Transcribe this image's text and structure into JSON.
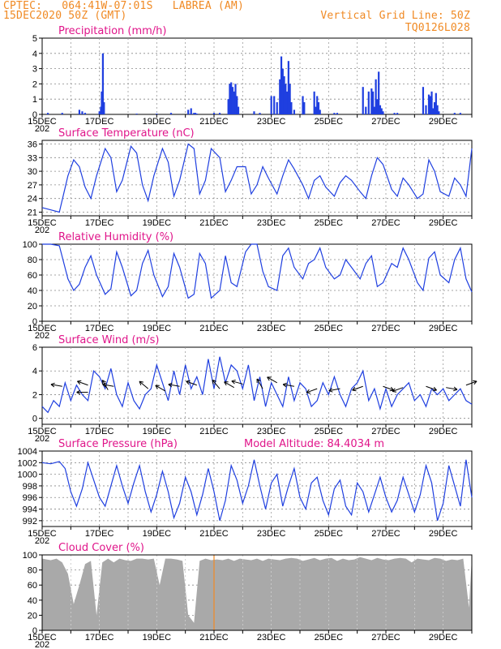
{
  "header": {
    "station_line": "CPTEC:   064:41W-07:01S   LABREA (AM)",
    "date_line": "15DEC2020 50Z (GMT)",
    "grid_note": "Vertical Grid Line: 50Z",
    "code": "TQ0126L028"
  },
  "x_axis": {
    "day_start": 15,
    "day_end": 30,
    "tick_labels": [
      "15DEC",
      "17DEC",
      "19DEC",
      "21DEC",
      "23DEC",
      "25DEC",
      "27DEC",
      "29DEC"
    ],
    "sub_label": "202"
  },
  "colors": {
    "line": "#1f3fe0",
    "bar": "#1f3fe0",
    "cloud": "#a9a9a9",
    "title": "#e0158a",
    "header": "#f08a24",
    "vline_orange": "#f08a24"
  },
  "chart_data": [
    {
      "id": "precip",
      "type": "bar",
      "title": "Precipitation (mm/h)",
      "ylim": [
        0,
        5
      ],
      "yticks": [
        0,
        1,
        2,
        3,
        4,
        5
      ],
      "x": [
        15.2,
        15.7,
        16.3,
        16.4,
        16.5,
        17.0,
        17.05,
        17.08,
        17.12,
        17.16,
        18.3,
        19.0,
        19.5,
        20.1,
        20.2,
        20.3,
        20.35,
        20.4,
        21.0,
        21.2,
        21.5,
        21.55,
        21.6,
        21.65,
        21.7,
        21.75,
        21.8,
        21.85,
        22.4,
        22.6,
        23.0,
        23.1,
        23.2,
        23.3,
        23.35,
        23.4,
        23.45,
        23.5,
        23.55,
        23.6,
        23.65,
        23.7,
        23.8,
        24.1,
        24.15,
        24.5,
        24.55,
        24.6,
        24.65,
        24.7,
        25.2,
        25.3,
        26.2,
        26.3,
        26.4,
        26.5,
        26.55,
        26.6,
        26.65,
        26.7,
        26.75,
        26.8,
        26.85,
        26.9,
        27.3,
        27.4,
        28.3,
        28.4,
        28.5,
        28.55,
        28.6,
        28.65,
        28.7,
        28.75,
        28.8,
        28.85,
        29.4,
        29.6
      ],
      "values": [
        0.1,
        0.1,
        0.3,
        0.2,
        0.1,
        0.2,
        0.5,
        1.5,
        4.0,
        0.8,
        0.05,
        0.05,
        0.1,
        0.3,
        0.4,
        0.1,
        0.1,
        0.05,
        0.1,
        0.1,
        1.0,
        2.0,
        2.1,
        1.8,
        1.5,
        2.0,
        1.2,
        0.5,
        0.2,
        0.1,
        1.2,
        1.2,
        0.8,
        2.3,
        3.8,
        3.0,
        2.5,
        2.0,
        1.5,
        3.5,
        2.0,
        0.8,
        0.3,
        1.2,
        0.8,
        1.5,
        0.5,
        1.2,
        0.8,
        0.3,
        0.1,
        0.1,
        1.8,
        0.5,
        1.5,
        1.7,
        1.5,
        0.5,
        2.3,
        1.0,
        2.8,
        0.6,
        0.4,
        0.2,
        0.1,
        0.1,
        1.8,
        0.6,
        1.3,
        1.2,
        1.5,
        0.4,
        0.8,
        1.4,
        0.6,
        0.2,
        0.1,
        0.1
      ]
    },
    {
      "id": "temp",
      "type": "line",
      "title": "Surface Temperature (nC)",
      "ylim": [
        20.2,
        36.8
      ],
      "yticks": [
        21,
        24,
        27,
        30,
        33,
        36
      ],
      "x": [
        15.0,
        15.3,
        15.6,
        15.9,
        16.1,
        16.3,
        16.5,
        16.7,
        16.9,
        17.2,
        17.4,
        17.6,
        17.8,
        18.1,
        18.3,
        18.5,
        18.7,
        18.9,
        19.2,
        19.4,
        19.6,
        19.8,
        20.1,
        20.3,
        20.5,
        20.7,
        20.9,
        21.2,
        21.4,
        21.6,
        21.8,
        22.1,
        22.3,
        22.5,
        22.7,
        22.9,
        23.2,
        23.4,
        23.6,
        23.8,
        24.1,
        24.3,
        24.5,
        24.7,
        24.9,
        25.2,
        25.4,
        25.6,
        25.8,
        26.1,
        26.3,
        26.5,
        26.7,
        26.9,
        27.2,
        27.4,
        27.6,
        27.8,
        28.1,
        28.3,
        28.5,
        28.7,
        28.9,
        29.2,
        29.4,
        29.6,
        29.8,
        30.0
      ],
      "values": [
        22.0,
        21.5,
        21.0,
        29.0,
        32.5,
        31.0,
        26.5,
        24.0,
        29.0,
        35.0,
        33.0,
        25.5,
        28.0,
        35.5,
        34.0,
        27.0,
        23.5,
        29.0,
        35.0,
        32.0,
        24.5,
        28.0,
        36.0,
        35.0,
        25.0,
        28.0,
        35.0,
        33.0,
        25.5,
        28.0,
        31.0,
        31.0,
        25.0,
        27.0,
        31.0,
        28.5,
        25.0,
        29.0,
        32.5,
        30.5,
        27.0,
        24.0,
        28.0,
        29.0,
        26.5,
        24.5,
        27.5,
        29.0,
        28.0,
        25.5,
        24.0,
        29.0,
        33.0,
        31.5,
        26.0,
        24.5,
        28.5,
        27.0,
        24.0,
        25.0,
        32.5,
        30.0,
        25.5,
        24.5,
        28.5,
        27.0,
        24.5,
        35.0
      ]
    },
    {
      "id": "rh",
      "type": "line",
      "title": "Relative Humidity (%)",
      "ylim": [
        0,
        100
      ],
      "yticks": [
        0,
        20,
        40,
        60,
        80,
        100
      ],
      "x": [
        15.0,
        15.3,
        15.6,
        15.9,
        16.1,
        16.3,
        16.5,
        16.7,
        16.9,
        17.2,
        17.4,
        17.6,
        17.8,
        18.1,
        18.3,
        18.5,
        18.7,
        18.9,
        19.2,
        19.4,
        19.6,
        19.8,
        20.1,
        20.3,
        20.5,
        20.7,
        20.9,
        21.2,
        21.4,
        21.6,
        21.8,
        22.1,
        22.3,
        22.5,
        22.7,
        22.9,
        23.2,
        23.4,
        23.6,
        23.8,
        24.1,
        24.3,
        24.5,
        24.7,
        24.9,
        25.2,
        25.4,
        25.6,
        25.8,
        26.1,
        26.3,
        26.5,
        26.7,
        26.9,
        27.2,
        27.4,
        27.6,
        27.8,
        28.1,
        28.3,
        28.5,
        28.7,
        28.9,
        29.2,
        29.4,
        29.6,
        29.8,
        30.0
      ],
      "values": [
        100,
        100,
        98,
        55,
        40,
        48,
        70,
        85,
        60,
        35,
        42,
        90,
        70,
        33,
        40,
        75,
        92,
        60,
        32,
        45,
        88,
        70,
        30,
        35,
        88,
        75,
        30,
        40,
        85,
        50,
        45,
        90,
        100,
        100,
        65,
        45,
        40,
        85,
        95,
        70,
        55,
        75,
        80,
        95,
        70,
        55,
        60,
        80,
        70,
        55,
        75,
        85,
        45,
        50,
        75,
        70,
        95,
        80,
        50,
        40,
        82,
        90,
        60,
        50,
        80,
        95,
        55,
        38
      ]
    },
    {
      "id": "wind",
      "type": "line",
      "title": "Surface Wind (m/s)",
      "ylim": [
        -0.5,
        6
      ],
      "yticks": [
        0,
        2,
        4,
        6
      ],
      "x": [
        15.0,
        15.2,
        15.4,
        15.6,
        15.8,
        16.0,
        16.2,
        16.4,
        16.6,
        16.8,
        17.0,
        17.2,
        17.4,
        17.6,
        17.8,
        18.0,
        18.2,
        18.4,
        18.6,
        18.8,
        19.0,
        19.2,
        19.4,
        19.6,
        19.8,
        20.0,
        20.2,
        20.4,
        20.6,
        20.8,
        21.0,
        21.2,
        21.4,
        21.6,
        21.8,
        22.0,
        22.2,
        22.4,
        22.6,
        22.8,
        23.0,
        23.2,
        23.4,
        23.6,
        23.8,
        24.0,
        24.2,
        24.4,
        24.6,
        24.8,
        25.0,
        25.2,
        25.4,
        25.6,
        25.8,
        26.0,
        26.2,
        26.4,
        26.6,
        26.8,
        27.0,
        27.2,
        27.4,
        27.6,
        27.8,
        28.0,
        28.2,
        28.4,
        28.6,
        28.8,
        29.0,
        29.2,
        29.4,
        29.6,
        29.8,
        30.0
      ],
      "values": [
        1.0,
        0.5,
        1.5,
        1.0,
        3.0,
        1.5,
        2.8,
        2.0,
        1.5,
        4.0,
        3.5,
        2.5,
        4.2,
        2.0,
        1.0,
        3.0,
        1.5,
        0.8,
        2.0,
        2.5,
        4.5,
        3.0,
        1.5,
        4.0,
        2.0,
        4.5,
        2.5,
        3.5,
        2.0,
        5.0,
        2.5,
        5.2,
        3.0,
        4.5,
        4.0,
        2.5,
        4.5,
        1.5,
        3.5,
        1.0,
        3.0,
        2.0,
        1.0,
        3.5,
        1.5,
        3.0,
        2.5,
        1.0,
        1.5,
        3.0,
        2.0,
        3.5,
        2.0,
        1.0,
        2.5,
        3.0,
        4.0,
        1.5,
        2.5,
        0.8,
        2.5,
        1.0,
        2.0,
        2.5,
        3.0,
        1.5,
        2.0,
        1.0,
        2.5,
        2.0,
        2.5,
        1.5,
        2.0,
        2.5,
        1.5,
        1.2
      ],
      "arrows": [
        {
          "x": 15.7,
          "y": 2.7,
          "dir": -170
        },
        {
          "x": 16.6,
          "y": 2.8,
          "dir": -160
        },
        {
          "x": 16.6,
          "y": 2.2,
          "dir": 180
        },
        {
          "x": 17.5,
          "y": 2.7,
          "dir": -170
        },
        {
          "x": 17.3,
          "y": 2.4,
          "dir": -120
        },
        {
          "x": 18.7,
          "y": 2.5,
          "dir": -140
        },
        {
          "x": 19.3,
          "y": 2.3,
          "dir": -150
        },
        {
          "x": 19.8,
          "y": 2.7,
          "dir": -170
        },
        {
          "x": 20.4,
          "y": 2.8,
          "dir": -160
        },
        {
          "x": 21.2,
          "y": 2.5,
          "dir": -130
        },
        {
          "x": 21.7,
          "y": 2.6,
          "dir": -150
        },
        {
          "x": 22.0,
          "y": 2.9,
          "dir": -165
        },
        {
          "x": 22.7,
          "y": 2.5,
          "dir": -120
        },
        {
          "x": 23.2,
          "y": 3.0,
          "dir": -150
        },
        {
          "x": 23.8,
          "y": 2.7,
          "dir": -170
        },
        {
          "x": 24.6,
          "y": 2.5,
          "dir": 160
        },
        {
          "x": 25.4,
          "y": 2.5,
          "dir": 170
        },
        {
          "x": 26.2,
          "y": 2.7,
          "dir": 160
        },
        {
          "x": 26.9,
          "y": 2.7,
          "dir": 20
        },
        {
          "x": 27.6,
          "y": 2.6,
          "dir": 160
        },
        {
          "x": 28.4,
          "y": 2.7,
          "dir": 20
        },
        {
          "x": 29.1,
          "y": 2.6,
          "dir": 10
        },
        {
          "x": 29.8,
          "y": 2.8,
          "dir": -20
        }
      ]
    },
    {
      "id": "pressure",
      "type": "line",
      "title": "Surface Pressure (hPa)",
      "subtitle": "Model Altitude: 84.4034 m",
      "ylim": [
        991,
        1004
      ],
      "yticks": [
        992,
        994,
        996,
        998,
        1000,
        1002,
        1004
      ],
      "x": [
        15.0,
        15.3,
        15.6,
        15.8,
        16.0,
        16.2,
        16.4,
        16.6,
        16.8,
        17.0,
        17.2,
        17.4,
        17.6,
        17.8,
        18.0,
        18.2,
        18.4,
        18.6,
        18.8,
        19.0,
        19.2,
        19.4,
        19.6,
        19.8,
        20.0,
        20.2,
        20.4,
        20.6,
        20.8,
        21.0,
        21.2,
        21.4,
        21.6,
        21.8,
        22.0,
        22.2,
        22.4,
        22.6,
        22.8,
        23.0,
        23.2,
        23.4,
        23.6,
        23.8,
        24.0,
        24.2,
        24.4,
        24.6,
        24.8,
        25.0,
        25.2,
        25.4,
        25.6,
        25.8,
        26.0,
        26.2,
        26.4,
        26.6,
        26.8,
        27.0,
        27.2,
        27.4,
        27.6,
        27.8,
        28.0,
        28.2,
        28.4,
        28.6,
        28.8,
        29.0,
        29.2,
        29.4,
        29.6,
        29.8,
        30.0
      ],
      "values": [
        1002.0,
        1001.8,
        1002.2,
        1001.0,
        997.0,
        994.5,
        997.5,
        1002.0,
        999.0,
        996.0,
        994.5,
        998.0,
        1001.5,
        998.0,
        995.0,
        998.5,
        1001.5,
        997.0,
        993.5,
        996.5,
        1000.5,
        997.0,
        992.5,
        995.0,
        999.5,
        997.0,
        993.0,
        996.5,
        1001.0,
        997.0,
        992.0,
        995.5,
        1001.5,
        999.0,
        995.0,
        998.0,
        1002.5,
        998.0,
        994.0,
        998.5,
        1000.0,
        994.5,
        998.0,
        1001.0,
        996.0,
        994.0,
        998.5,
        999.5,
        995.5,
        993.0,
        997.5,
        999.0,
        994.5,
        993.0,
        998.5,
        997.0,
        993.5,
        996.5,
        999.5,
        996.0,
        993.5,
        995.5,
        999.5,
        996.5,
        993.5,
        996.5,
        1001.5,
        998.5,
        992.0,
        995.0,
        1001.5,
        998.0,
        994.5,
        1002.5,
        996.0
      ]
    },
    {
      "id": "cloud",
      "type": "area",
      "title": "Cloud Cover (%)",
      "ylim": [
        0,
        100
      ],
      "yticks": [
        0,
        20,
        40,
        60,
        80,
        100
      ],
      "x": [
        15.0,
        15.3,
        15.5,
        15.7,
        15.9,
        16.1,
        16.3,
        16.5,
        16.7,
        16.9,
        17.1,
        17.3,
        17.5,
        17.7,
        17.9,
        18.1,
        18.3,
        18.5,
        18.7,
        18.9,
        19.1,
        19.3,
        19.5,
        19.7,
        19.9,
        20.1,
        20.3,
        20.5,
        20.7,
        20.9,
        21.1,
        21.3,
        21.5,
        21.7,
        21.9,
        22.1,
        22.3,
        22.5,
        22.7,
        22.9,
        23.1,
        23.3,
        23.5,
        23.7,
        23.9,
        24.1,
        24.3,
        24.5,
        24.7,
        24.9,
        25.1,
        25.3,
        25.5,
        25.7,
        25.9,
        26.1,
        26.3,
        26.5,
        26.7,
        26.9,
        27.1,
        27.3,
        27.5,
        27.7,
        27.9,
        28.1,
        28.3,
        28.5,
        28.7,
        28.9,
        29.1,
        29.3,
        29.5,
        29.7,
        29.9,
        30.0
      ],
      "values": [
        95,
        93,
        95,
        90,
        75,
        35,
        60,
        88,
        92,
        20,
        90,
        95,
        90,
        95,
        93,
        92,
        95,
        95,
        94,
        95,
        60,
        95,
        95,
        94,
        92,
        20,
        10,
        92,
        95,
        93,
        94,
        93,
        95,
        92,
        95,
        94,
        93,
        95,
        92,
        95,
        94,
        93,
        95,
        96,
        95,
        92,
        94,
        96,
        93,
        95,
        96,
        92,
        95,
        93,
        94,
        97,
        95,
        93,
        96,
        94,
        93,
        95,
        96,
        95,
        90,
        95,
        94,
        93,
        96,
        95,
        92,
        94,
        93,
        95,
        30,
        96
      ]
    }
  ]
}
